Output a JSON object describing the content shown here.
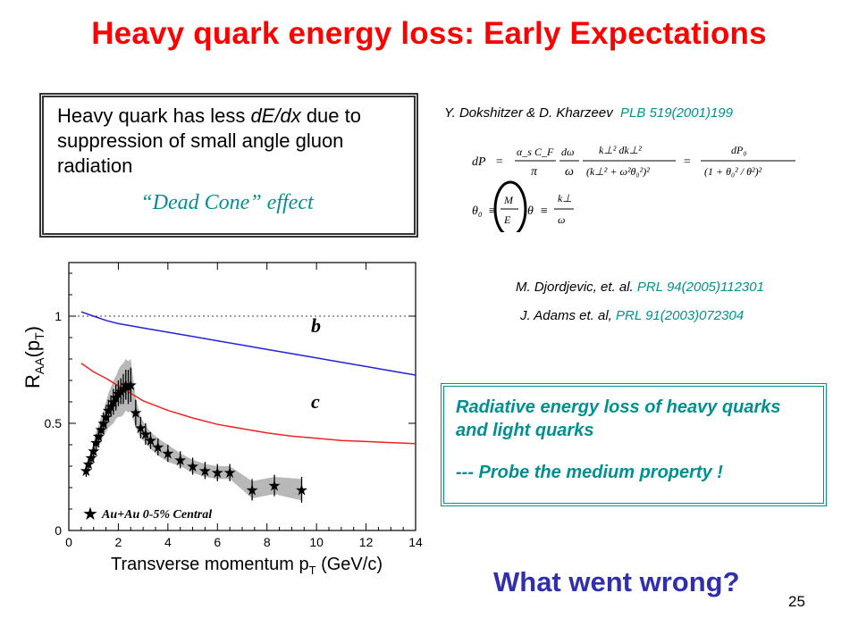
{
  "title": "Heavy quark energy loss: Early Expectations",
  "dead_cone": {
    "text": "Heavy quark has less dE/dx due to suppression of small angle gluon radiation",
    "text_prefix": "Heavy quark has less ",
    "text_em": "dE/dx",
    "text_suffix": " due to suppression of small angle gluon radiation",
    "effect": "“Dead Cone” effect"
  },
  "refs": [
    {
      "authors": "Y. Dokshitzer & D. Kharzeev",
      "journal": "PLB 519(2001)199"
    },
    {
      "authors": "M. Djordjevic, et. al.",
      "journal": "PRL 94(2005)112301"
    },
    {
      "authors": "J. Adams et. al,",
      "journal": "PRL 91(2003)072304"
    }
  ],
  "formula": {
    "dP": "dP",
    "eq": "=",
    "as_cf": "α_s C_F",
    "pi": "π",
    "domega": "dω",
    "omega": "ω",
    "num2": "k⊥² dk⊥²",
    "den2": "(k⊥² + ω²θ₀²)²",
    "dP0": "dP₀",
    "den3": "(1 + θ₀² / θ²)²",
    "theta0": "θ₀",
    "equiv": "≡",
    "M": "M",
    "E": "E",
    "theta": "θ",
    "kperp": "k⊥"
  },
  "radiative": {
    "line1": "Radiative energy loss of heavy quarks and light quarks",
    "line2": "--- Probe the medium property !"
  },
  "question": "What went wrong?",
  "page_number": "25",
  "chart_data": {
    "type": "line",
    "ylabel": "RAA (pT)",
    "ylabel_main": "R",
    "ylabel_sub": "AA",
    "ylabel_arg": "(p",
    "ylabel_arg_sub": "T",
    "ylabel_close": ")",
    "xlabel": "Transverse momentum pT (GeV/c)",
    "xlabel_main": "Transverse momentum p",
    "xlabel_sub": "T",
    "xlabel_unit": " (GeV/c)",
    "xlim": [
      0,
      14
    ],
    "ylim": [
      0,
      1.25
    ],
    "x_ticks": [
      "0",
      "2",
      "4",
      "6",
      "8",
      "10",
      "12",
      "14"
    ],
    "y_ticks": [
      "0",
      "0.5",
      "1"
    ],
    "reference_line": 1.0,
    "series": [
      {
        "name": "b",
        "color": "#2222dd",
        "x": [
          0.5,
          1,
          1.5,
          2,
          2.5,
          3,
          4,
          5,
          6,
          7,
          8,
          9,
          10,
          11,
          12,
          13,
          14
        ],
        "y": [
          1.02,
          1.0,
          0.98,
          0.965,
          0.955,
          0.945,
          0.925,
          0.905,
          0.885,
          0.865,
          0.845,
          0.825,
          0.805,
          0.785,
          0.765,
          0.745,
          0.725
        ]
      },
      {
        "name": "c",
        "color": "#ee2222",
        "x": [
          0.5,
          1,
          1.5,
          2,
          2.5,
          3,
          4,
          5,
          6,
          7,
          8,
          9,
          10,
          11,
          12,
          13,
          14
        ],
        "y": [
          0.78,
          0.74,
          0.71,
          0.675,
          0.64,
          0.605,
          0.56,
          0.525,
          0.495,
          0.475,
          0.455,
          0.44,
          0.43,
          0.42,
          0.415,
          0.41,
          0.405
        ]
      }
    ],
    "data_series": {
      "name": "Au+Au 0-5% Central",
      "x": [
        0.7,
        0.8,
        0.9,
        1.0,
        1.1,
        1.2,
        1.3,
        1.4,
        1.5,
        1.6,
        1.7,
        1.8,
        1.9,
        2.0,
        2.1,
        2.2,
        2.3,
        2.4,
        2.5,
        2.7,
        2.9,
        3.1,
        3.3,
        3.6,
        4.0,
        4.5,
        5.0,
        5.5,
        6.0,
        6.5,
        7.4,
        8.3,
        9.4
      ],
      "y": [
        0.28,
        0.31,
        0.34,
        0.37,
        0.41,
        0.44,
        0.47,
        0.5,
        0.53,
        0.56,
        0.58,
        0.6,
        0.62,
        0.64,
        0.65,
        0.66,
        0.68,
        0.67,
        0.68,
        0.55,
        0.48,
        0.45,
        0.42,
        0.39,
        0.36,
        0.33,
        0.3,
        0.28,
        0.27,
        0.27,
        0.19,
        0.21,
        0.19
      ],
      "err": [
        0.03,
        0.03,
        0.03,
        0.04,
        0.04,
        0.04,
        0.04,
        0.05,
        0.05,
        0.05,
        0.05,
        0.06,
        0.06,
        0.06,
        0.06,
        0.07,
        0.07,
        0.08,
        0.08,
        0.06,
        0.05,
        0.05,
        0.04,
        0.04,
        0.04,
        0.04,
        0.04,
        0.04,
        0.04,
        0.04,
        0.05,
        0.05,
        0.06
      ],
      "band": [
        0.03,
        0.03,
        0.03,
        0.04,
        0.05,
        0.05,
        0.06,
        0.06,
        0.07,
        0.08,
        0.09,
        0.1,
        0.1,
        0.11,
        0.12,
        0.12,
        0.12,
        0.12,
        0.12,
        0.07,
        0.05,
        0.04,
        0.04,
        0.04,
        0.04,
        0.03,
        0.03,
        0.03,
        0.03,
        0.03,
        0.04,
        0.04,
        0.05
      ]
    },
    "legend": "bottom-left"
  }
}
